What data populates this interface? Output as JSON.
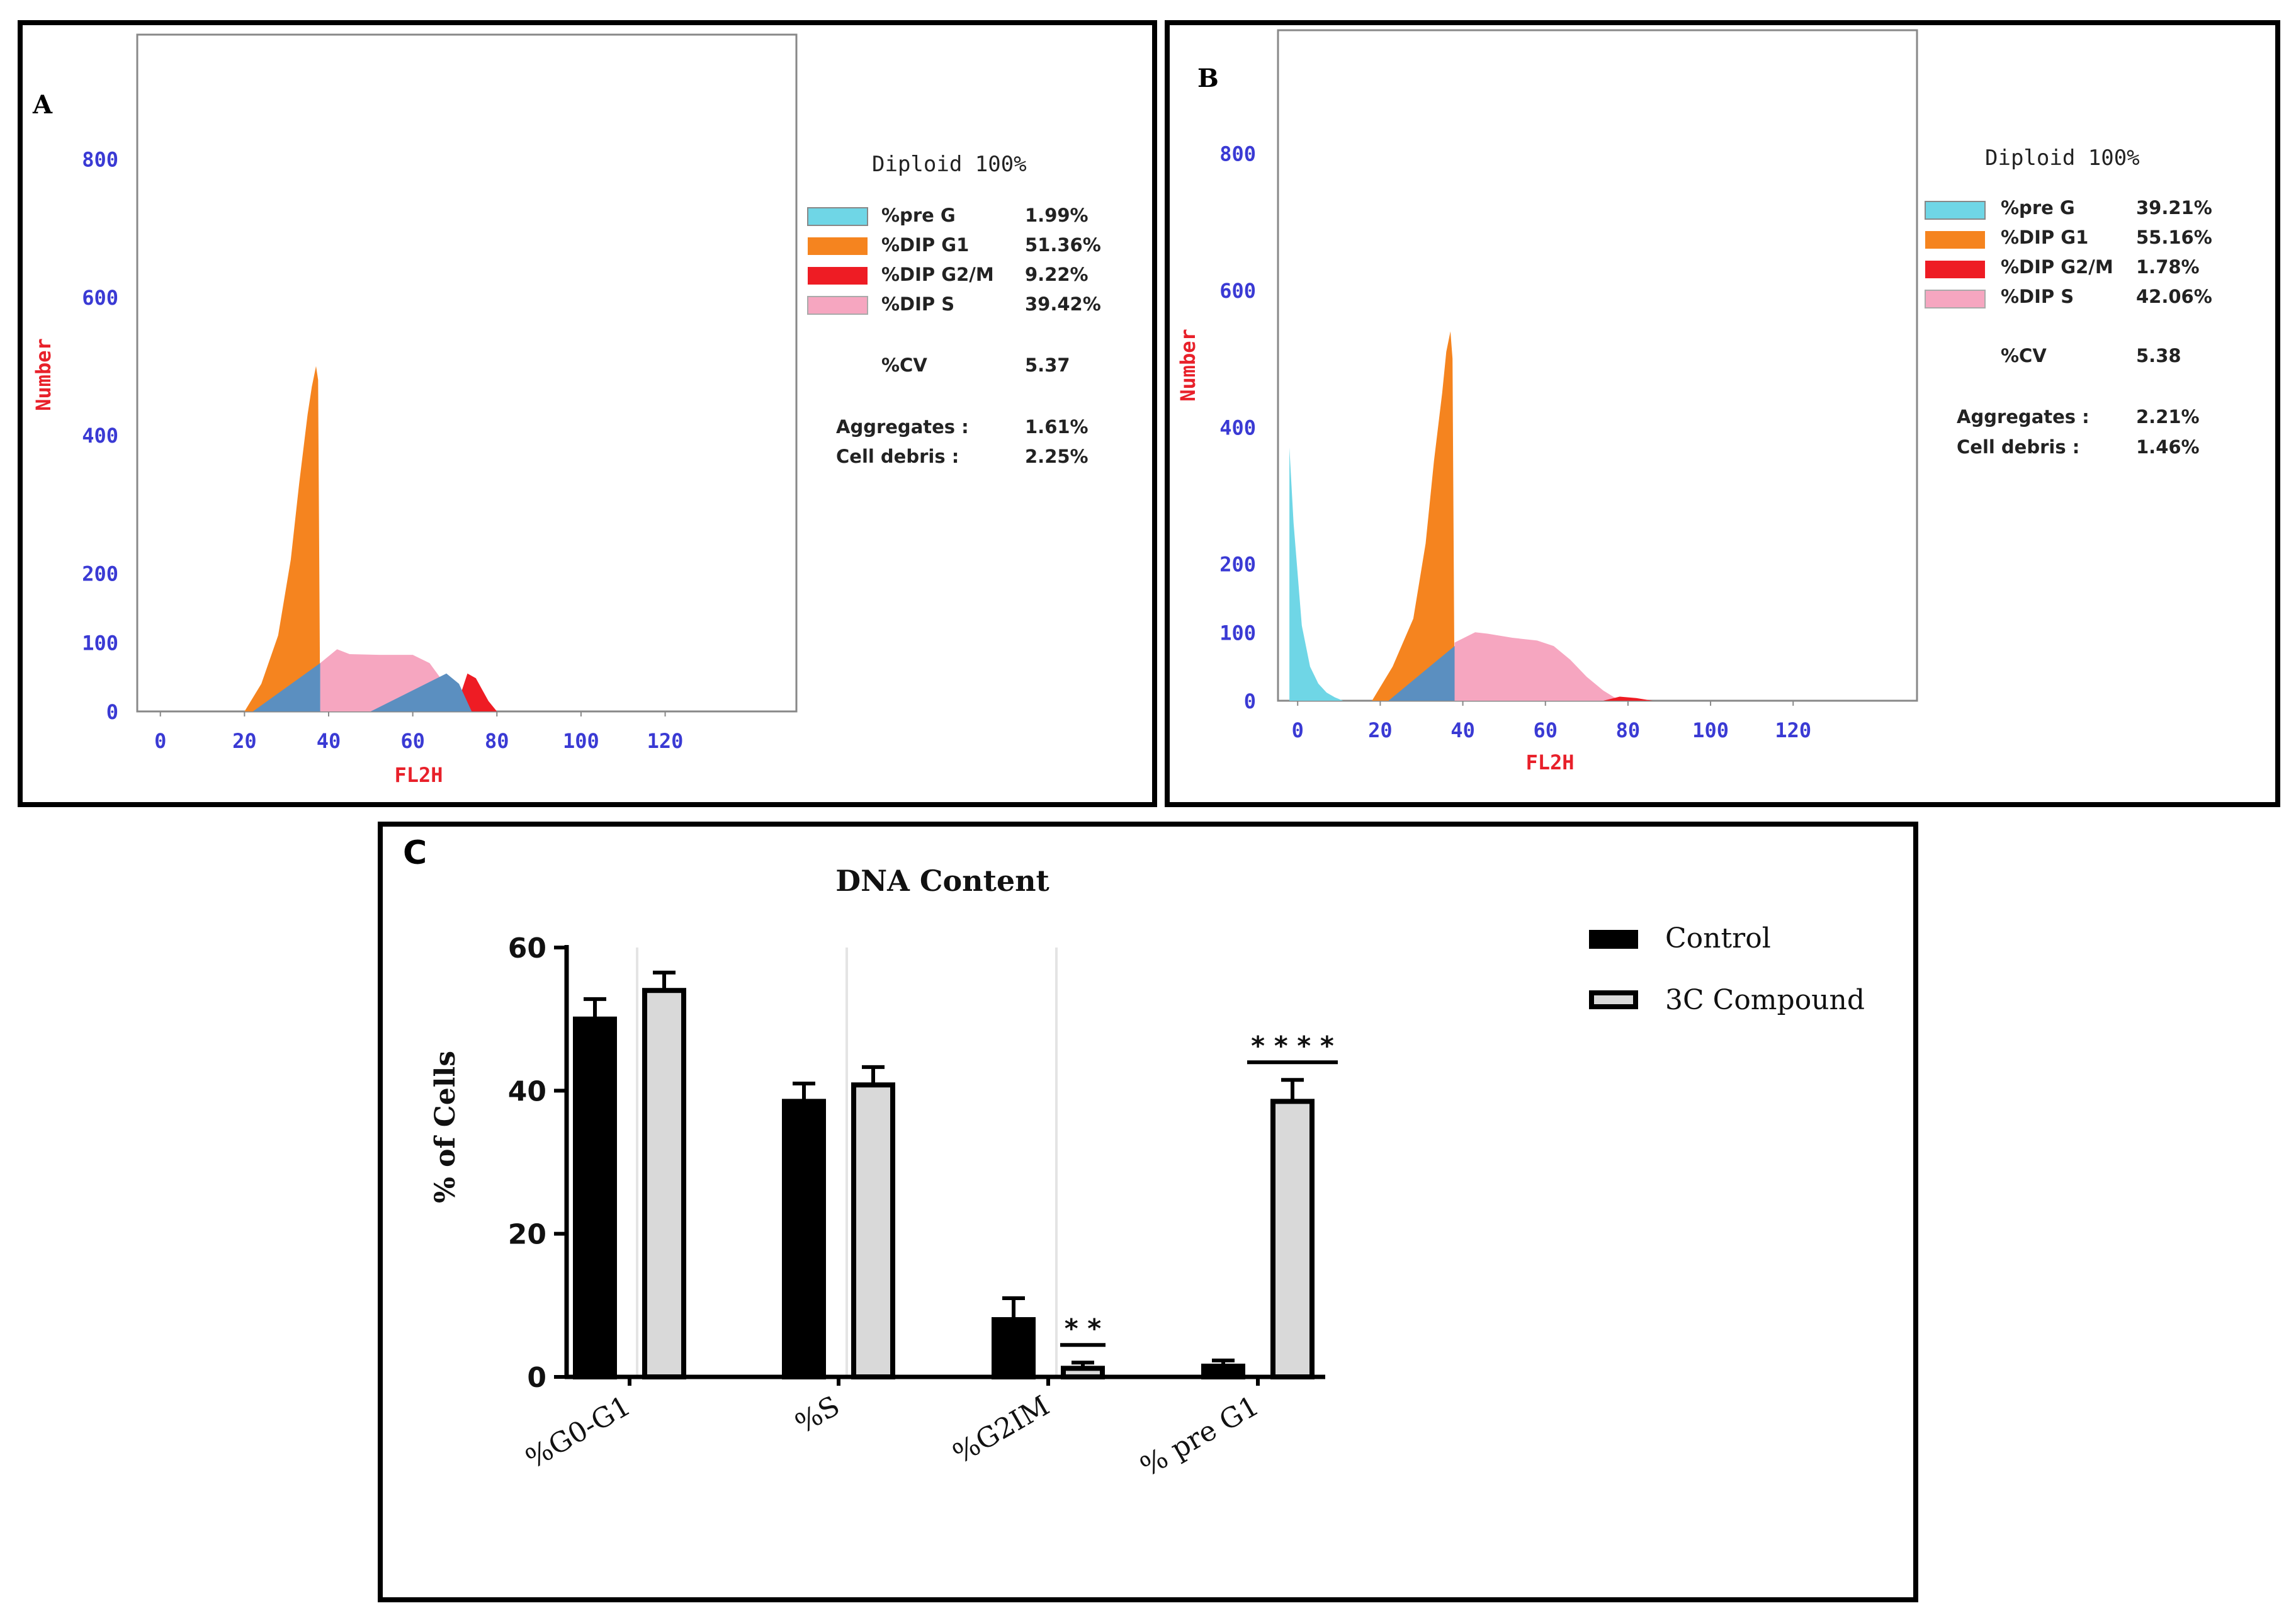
{
  "figure": {
    "panel_a_letter": "A",
    "panel_b_letter": "B",
    "panel_c_letter": "C"
  },
  "colors": {
    "pre_g": "#6fd6e6",
    "g1": "#f5841f",
    "g2m": "#ee1c24",
    "s": "#f6a6c0",
    "overlap": "#5b8fc0",
    "axis_tick": "#3a3ad4",
    "axis_label": "#e8202a",
    "control_bar": "#000000",
    "compound_bar": "#d9d9d9"
  },
  "histogram_common": {
    "ylabel": "Number",
    "xlabel": "FL2H",
    "y_ticks": [
      "0",
      "100",
      "200",
      "400",
      "600",
      "800"
    ],
    "y_tick_values": [
      0,
      100,
      200,
      400,
      600,
      800
    ],
    "x_ticks": [
      "0",
      "20",
      "40",
      "60",
      "80",
      "100",
      "120"
    ],
    "x_tick_values": [
      0,
      20,
      40,
      60,
      80,
      100,
      120
    ],
    "legend_title": "Diploid 100%",
    "legend_labels": [
      "%pre G",
      "%DIP G1",
      "%DIP G2/M",
      "%DIP S"
    ],
    "cv_label": "%CV",
    "aggregates_label": "Aggregates :",
    "debris_label": "Cell debris :"
  },
  "chart_data": [
    {
      "type": "area",
      "panel": "A",
      "title": "Diploid 100%",
      "xlabel": "FL2H",
      "ylabel": "Number",
      "xlim": [
        -4,
        150
      ],
      "ylim": [
        0,
        980
      ],
      "y_tick_values": [
        0,
        100,
        200,
        400,
        600,
        800
      ],
      "legend": [
        {
          "name": "%pre G",
          "value": "1.99%"
        },
        {
          "name": "%DIP G1",
          "value": "51.36%"
        },
        {
          "name": "%DIP G2/M",
          "value": "9.22%"
        },
        {
          "name": "%DIP S",
          "value": "39.42%"
        }
      ],
      "cv": "5.37",
      "aggregates": "1.61%",
      "cell_debris": "2.25%",
      "series": [
        {
          "name": "G1 peak",
          "color_key": "g1",
          "x": [
            20,
            24,
            28,
            31,
            33,
            35,
            36,
            37,
            37.5,
            38
          ],
          "y": [
            0,
            40,
            110,
            220,
            330,
            430,
            470,
            500,
            480,
            0
          ]
        },
        {
          "name": "S phase",
          "color_key": "s",
          "x": [
            38,
            42,
            45,
            52,
            60,
            64,
            67,
            70,
            74,
            76
          ],
          "y": [
            70,
            90,
            83,
            82,
            82,
            70,
            45,
            25,
            10,
            0
          ]
        },
        {
          "name": "G2/M",
          "color_key": "g2m",
          "x": [
            70,
            73,
            75,
            78,
            80
          ],
          "y": [
            0,
            55,
            48,
            15,
            0
          ]
        },
        {
          "name": "Overlap",
          "color_key": "overlap",
          "x": [
            22,
            38,
            38,
            50,
            68,
            71,
            74
          ],
          "y": [
            0,
            70,
            0,
            0,
            55,
            40,
            0
          ]
        }
      ]
    },
    {
      "type": "area",
      "panel": "B",
      "title": "Diploid 100%",
      "xlabel": "FL2H",
      "ylabel": "Number",
      "xlim": [
        -4,
        150
      ],
      "ylim": [
        0,
        980
      ],
      "y_tick_values": [
        0,
        100,
        200,
        400,
        600,
        800
      ],
      "legend": [
        {
          "name": "%pre G",
          "value": "39.21%"
        },
        {
          "name": "%DIP G1",
          "value": "55.16%"
        },
        {
          "name": "%DIP G2/M",
          "value": "1.78%"
        },
        {
          "name": "%DIP S",
          "value": "42.06%"
        }
      ],
      "cv": "5.38",
      "aggregates": "2.21%",
      "cell_debris": "1.46%",
      "series": [
        {
          "name": "pre G",
          "color_key": "pre_g",
          "x": [
            -2,
            -1,
            1,
            3,
            5,
            7,
            9,
            11
          ],
          "y": [
            370,
            260,
            110,
            50,
            25,
            12,
            5,
            0
          ]
        },
        {
          "name": "G1 peak",
          "color_key": "g1",
          "x": [
            18,
            23,
            28,
            31,
            33,
            35,
            36,
            37,
            37.5,
            38
          ],
          "y": [
            0,
            50,
            120,
            230,
            350,
            450,
            510,
            540,
            500,
            0
          ]
        },
        {
          "name": "S phase",
          "color_key": "s",
          "x": [
            38,
            43,
            46,
            52,
            58,
            62,
            66,
            70,
            74,
            78
          ],
          "y": [
            85,
            100,
            98,
            92,
            88,
            80,
            60,
            35,
            15,
            0
          ]
        },
        {
          "name": "G2/M",
          "color_key": "g2m",
          "x": [
            74,
            78,
            82,
            86
          ],
          "y": [
            0,
            6,
            4,
            0
          ]
        },
        {
          "name": "Overlap",
          "color_key": "overlap",
          "x": [
            22,
            38,
            38
          ],
          "y": [
            0,
            80,
            0
          ]
        }
      ]
    },
    {
      "type": "bar",
      "panel": "C",
      "title": "DNA Content",
      "ylabel": "% of Cells",
      "xlabel": "",
      "ylim": [
        0,
        60
      ],
      "y_ticks": [
        "0",
        "20",
        "40",
        "60"
      ],
      "y_tick_values": [
        0,
        20,
        40,
        60
      ],
      "categories": [
        "%G0-G1",
        "%S",
        "%G2IM",
        "% pre G1"
      ],
      "series": [
        {
          "name": "Control",
          "color_key": "control_bar",
          "values": [
            50,
            38.5,
            8,
            1.5
          ],
          "errors": [
            2.8,
            2.5,
            3,
            0.8
          ]
        },
        {
          "name": "3C Compound",
          "color_key": "compound_bar",
          "values": [
            54,
            40.8,
            1.2,
            38.5
          ],
          "errors": [
            2.5,
            2.5,
            0.8,
            3
          ]
        }
      ],
      "significance": [
        {
          "category": "%G2IM",
          "label": "* *"
        },
        {
          "category": "% pre G1",
          "label": "* * * *"
        }
      ]
    }
  ]
}
